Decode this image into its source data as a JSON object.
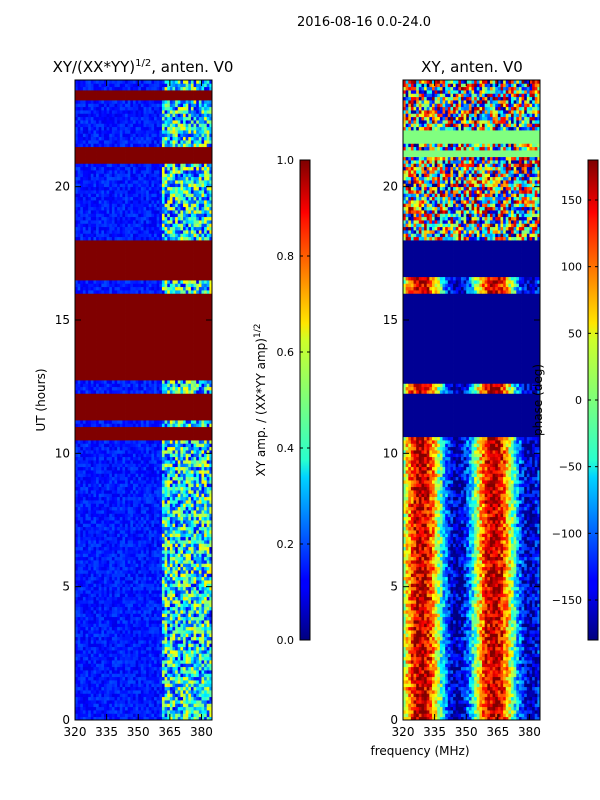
{
  "figure": {
    "suptitle": "2016-08-16 0.0-24.0",
    "xlabel": "frequency (MHz)"
  },
  "chart_data": [
    {
      "type": "heatmap",
      "title": "XY/(XX*YY)",
      "title_sup": "1/2",
      "title_suffix": ", anten. V0",
      "xlabel": "",
      "ylabel": "UT (hours)",
      "xlim": [
        320,
        385
      ],
      "ylim": [
        0,
        24
      ],
      "xticks": [
        320,
        335,
        350,
        365,
        380
      ],
      "yticks": [
        0,
        5,
        10,
        15,
        20
      ],
      "colormap": "jet",
      "colorbar": {
        "label": "XY amp. / (XX*YY amp)",
        "label_sup": "1/2",
        "range": [
          0,
          1
        ],
        "ticks": [
          0.0,
          0.2,
          0.4,
          0.6,
          0.8,
          1.0
        ],
        "ticklabels": [
          "0.0",
          "0.2",
          "0.4",
          "0.6",
          "0.8",
          "1.0"
        ]
      },
      "saturated_ut_bands": [
        [
          10.5,
          11.0
        ],
        [
          11.3,
          12.3
        ],
        [
          12.7,
          16.0
        ],
        [
          16.5,
          18.0
        ],
        [
          20.9,
          21.5
        ],
        [
          23.3,
          23.6
        ]
      ],
      "typical_values": {
        "low_band_320_361": 0.15,
        "high_band_361_382": 0.45
      }
    },
    {
      "type": "heatmap",
      "title": "XY, anten. V0",
      "xlabel": "",
      "ylabel": "",
      "xlim": [
        320,
        385
      ],
      "ylim": [
        0,
        24
      ],
      "xticks": [
        320,
        335,
        350,
        365,
        380
      ],
      "yticks": [
        0,
        5,
        10,
        15,
        20
      ],
      "colormap": "jet",
      "colorbar": {
        "label": "phase (deg)",
        "range": [
          -180,
          180
        ],
        "ticks": [
          -150,
          -100,
          -50,
          0,
          50,
          100,
          150
        ],
        "ticklabels": [
          "−150",
          "−100",
          "−50",
          "0",
          "50",
          "100",
          "150"
        ]
      },
      "flat_phase_ut_bands": [
        [
          10.6,
          12.2
        ],
        [
          12.6,
          16.0
        ],
        [
          16.6,
          18.0
        ]
      ],
      "flat_phase_value_deg": -180,
      "green_ut_bands": [
        [
          21.1,
          21.4
        ],
        [
          21.6,
          22.1
        ],
        [
          12.1,
          12.3
        ]
      ],
      "green_phase_value_deg": 0
    }
  ]
}
